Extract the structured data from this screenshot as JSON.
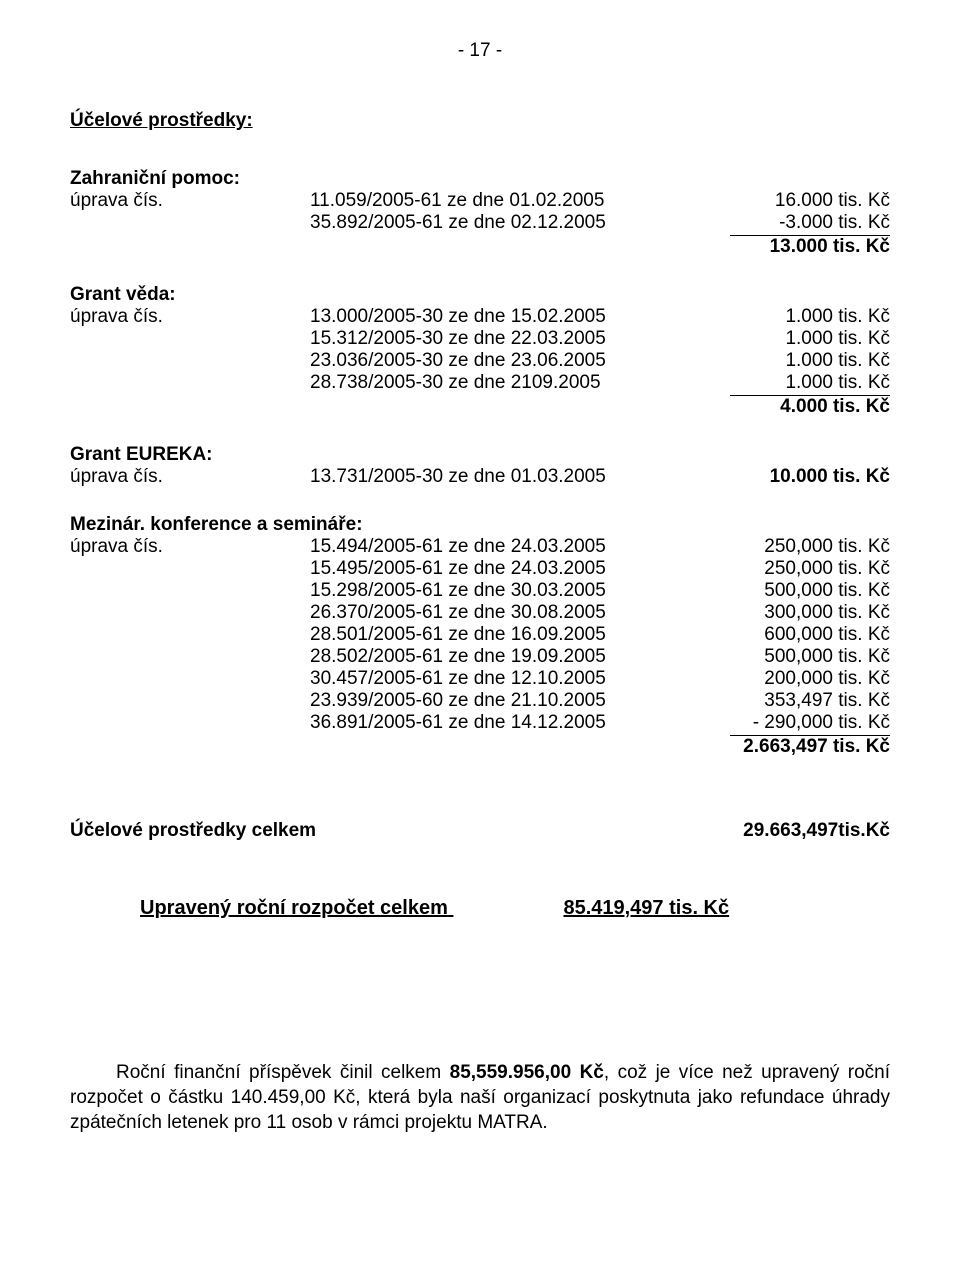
{
  "pageNumber": "- 17   -",
  "heading": "Účelové prostředky:",
  "groups": [
    {
      "label": "Zahraniční pomoc:",
      "rows": [
        {
          "c1": "úprava čís.",
          "c2": "11.059/2005-61  ze dne 01.02.2005",
          "amount": "16.000 tis. Kč",
          "bold": false,
          "underlined": false
        },
        {
          "c1": "",
          "c2": "35.892/2005-61  ze dne 02.12.2005",
          "amount": "-3.000 tis. Kč",
          "bold": false,
          "underlined": true
        }
      ],
      "sum": "13.000 tis. Kč"
    },
    {
      "label": "Grant věda:",
      "rows": [
        {
          "c1": "úprava čís.",
          "c2": "13.000/2005-30  ze dne 15.02.2005",
          "amount": "1.000 tis. Kč",
          "bold": false,
          "underlined": false
        },
        {
          "c1": "",
          "c2": "15.312/2005-30  ze dne 22.03.2005",
          "amount": "1.000 tis. Kč",
          "bold": false,
          "underlined": false
        },
        {
          "c1": "",
          "c2": "23.036/2005-30  ze dne 23.06.2005",
          "amount": "1.000 tis. Kč",
          "bold": false,
          "underlined": false
        },
        {
          "c1": "",
          "c2": "28.738/2005-30  ze dne 2109.2005",
          "amount": "1.000 tis. Kč",
          "bold": false,
          "underlined": true
        }
      ],
      "sum": "4.000 tis. Kč"
    },
    {
      "label": "Grant EUREKA:",
      "rows": [
        {
          "c1": "úprava čís.",
          "c2": "13.731/2005-30  ze dne 01.03.2005",
          "amount": "10.000 tis. Kč",
          "bold": true,
          "underlined": false
        }
      ],
      "sum": null
    },
    {
      "label": "Mezinár. konference a semináře:",
      "rows": [
        {
          "c1": "úprava čís.",
          "c2": "15.494/2005-61  ze dne 24.03.2005",
          "amount": "250,000 tis. Kč",
          "bold": false,
          "underlined": false
        },
        {
          "c1": "",
          "c2": "15.495/2005-61  ze dne 24.03.2005",
          "amount": "250,000 tis. Kč",
          "bold": false,
          "underlined": false
        },
        {
          "c1": "",
          "c2": "15.298/2005-61  ze dne 30.03.2005",
          "amount": "500,000 tis. Kč",
          "bold": false,
          "underlined": false
        },
        {
          "c1": "",
          "c2": "26.370/2005-61  ze dne 30.08.2005",
          "amount": "300,000 tis. Kč",
          "bold": false,
          "underlined": false
        },
        {
          "c1": "",
          "c2": "28.501/2005-61  ze dne 16.09.2005",
          "amount": "600,000 tis. Kč",
          "bold": false,
          "underlined": false
        },
        {
          "c1": "",
          "c2": "28.502/2005-61  ze dne 19.09.2005",
          "amount": "500,000 tis. Kč",
          "bold": false,
          "underlined": false
        },
        {
          "c1": "",
          "c2": "30.457/2005-61  ze dne 12.10.2005",
          "amount": "200,000 tis. Kč",
          "bold": false,
          "underlined": false
        },
        {
          "c1": "",
          "c2": "23.939/2005-60  ze dne 21.10.2005",
          "amount": "353,497 tis. Kč",
          "bold": false,
          "underlined": false
        },
        {
          "c1": "",
          "c2": "36.891/2005-61  ze dne 14.12.2005",
          "amount": "- 290,000 tis. Kč",
          "bold": false,
          "underlined": true
        }
      ],
      "sum": "2.663,497 tis. Kč"
    }
  ],
  "totalLabel": "Účelové prostředky celkem",
  "totalValue": "29.663,497tis.Kč",
  "adjustedLabel": "Upravený roční rozpočet celkem",
  "adjustedValue": "85.419,497 tis. Kč",
  "paragraph_prefix": "Roční finanční příspěvek činil celkem ",
  "paragraph_bold": "85,559.956,00 Kč",
  "paragraph_suffix": ", což je více než upravený roční rozpočet o částku 140.459,00 Kč, která byla naší organizací poskytnuta jako refundace úhrady zpátečních letenek pro 11 osob v rámci projektu MATRA."
}
